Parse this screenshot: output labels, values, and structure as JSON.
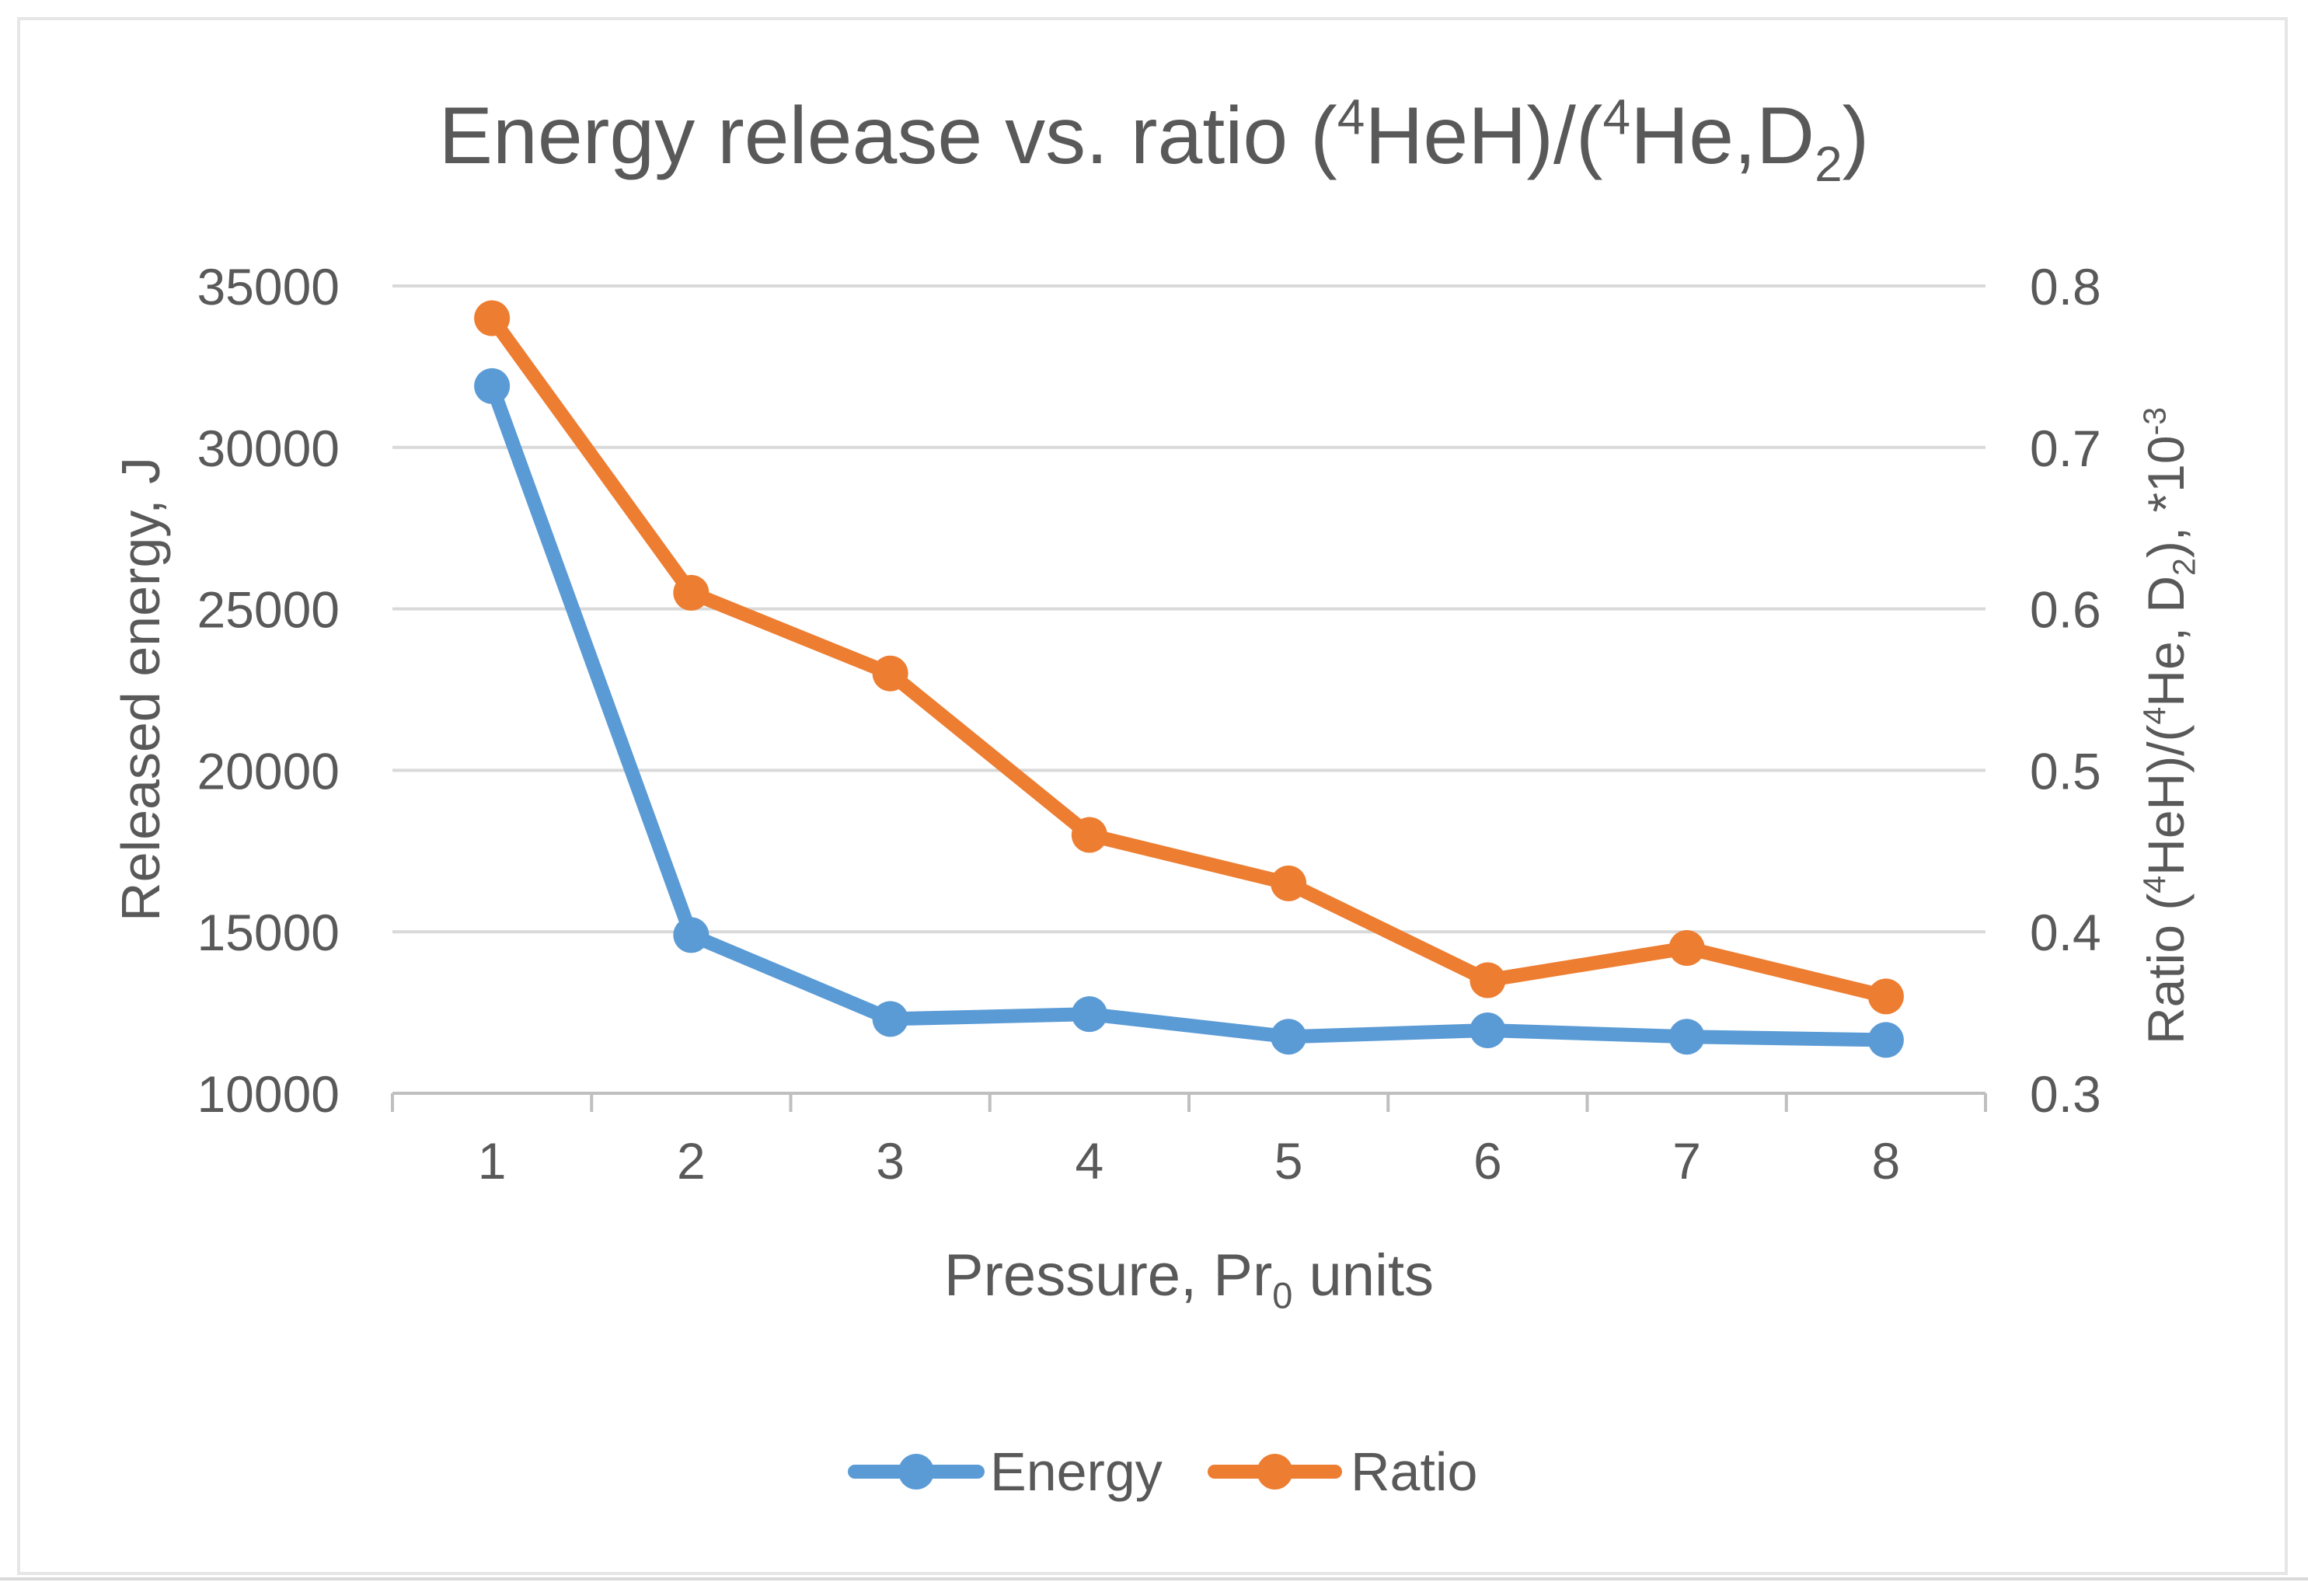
{
  "chart_data": {
    "type": "line",
    "title": {
      "parts": [
        {
          "text": "Energy release vs. ratio (",
          "style": "normal"
        },
        {
          "text": "4",
          "style": "sup"
        },
        {
          "text": "HeH)/(",
          "style": "normal"
        },
        {
          "text": "4",
          "style": "sup"
        },
        {
          "text": "He,D",
          "style": "normal"
        },
        {
          "text": "2",
          "style": "sub"
        },
        {
          "text": ")",
          "style": "normal"
        }
      ]
    },
    "x": [
      1,
      2,
      3,
      4,
      5,
      6,
      7,
      8
    ],
    "xlabel": {
      "parts": [
        {
          "text": "Pressure, Pr",
          "style": "normal"
        },
        {
          "text": "0",
          "style": "sub"
        },
        {
          "text": " units",
          "style": "normal"
        }
      ]
    },
    "ylabel_left": "Released energy, J",
    "ylabel_right": {
      "parts": [
        {
          "text": "Ratio (",
          "style": "normal"
        },
        {
          "text": "4",
          "style": "sup"
        },
        {
          "text": "HeH)/(",
          "style": "normal"
        },
        {
          "text": "4",
          "style": "sup"
        },
        {
          "text": "He, D",
          "style": "normal"
        },
        {
          "text": "2",
          "style": "sub"
        },
        {
          "text": "), *10",
          "style": "normal"
        },
        {
          "text": "-3",
          "style": "sup"
        }
      ]
    },
    "ylim_left": [
      10000,
      35000
    ],
    "yticks_left": [
      10000,
      15000,
      20000,
      25000,
      30000,
      35000
    ],
    "ylim_right": [
      0.3,
      0.8
    ],
    "yticks_right": [
      "0.3",
      "0.4",
      "0.5",
      "0.6",
      "0.7",
      "0.8"
    ],
    "grid": true,
    "legend_position": "bottom",
    "series": [
      {
        "name": "Energy",
        "axis": "left",
        "color": "#5b9bd5",
        "values": [
          31900,
          14900,
          12300,
          12450,
          11750,
          11950,
          11750,
          11650
        ]
      },
      {
        "name": "Ratio",
        "axis": "right",
        "color": "#ed7d31",
        "values": [
          0.78,
          0.61,
          0.56,
          0.46,
          0.43,
          0.37,
          0.39,
          0.36
        ]
      }
    ]
  },
  "colors": {
    "text": "#595959",
    "grid": "#d9d9d9",
    "axis": "#bfbfbf"
  }
}
